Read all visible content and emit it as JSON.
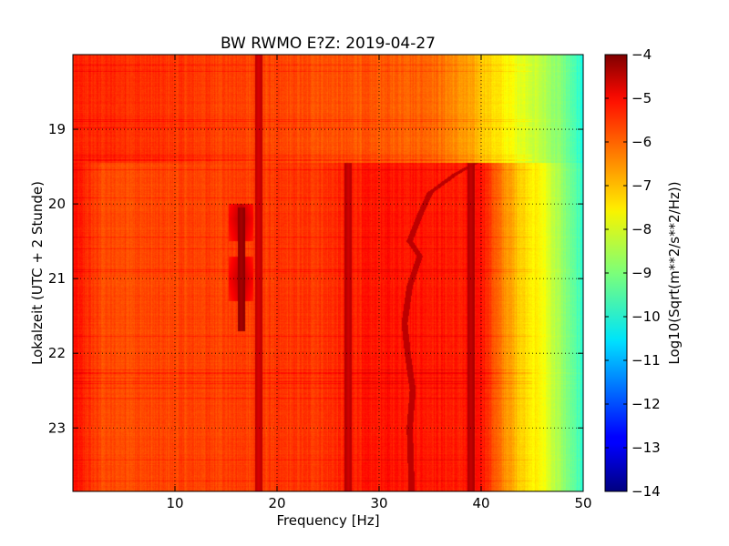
{
  "chart_data": {
    "type": "heatmap",
    "title": "BW RWMO E?Z: 2019-04-27",
    "xlabel": "Frequency [Hz]",
    "ylabel": "Lokalzeit (UTC + 2 Stunde)",
    "xlim": [
      0,
      50
    ],
    "ylim": [
      18,
      23.85
    ],
    "x_ticks": [
      10,
      20,
      30,
      40,
      50
    ],
    "y_ticks": [
      19,
      20,
      21,
      22,
      23
    ],
    "y_inverted": true,
    "grid": true,
    "colorbar": {
      "label": "Log10(Sqrt(m**2/s**2/Hz))",
      "range": [
        -14,
        -4
      ],
      "ticks": [
        -4,
        -5,
        -6,
        -7,
        -8,
        -9,
        -10,
        -11,
        -12,
        -13,
        -14
      ],
      "colormap": "jet"
    },
    "features": {
      "background_level": -6.0,
      "high_freq_rolloff": [
        {
          "freq": 0,
          "value": -5.4
        },
        {
          "freq": 3,
          "value": -6.0
        },
        {
          "freq": 38,
          "value": -5.6
        },
        {
          "freq": 40,
          "value": -5.3
        },
        {
          "freq": 42,
          "value": -6.5
        },
        {
          "freq": 44,
          "value": -7.3
        },
        {
          "freq": 46,
          "value": -7.8
        },
        {
          "freq": 48,
          "value": -8.8
        },
        {
          "freq": 50,
          "value": -9.8
        }
      ],
      "early_segment_end_time": 19.45,
      "early_segment_rolloff": [
        {
          "freq": 0,
          "value": -5.6
        },
        {
          "freq": 35,
          "value": -6.2
        },
        {
          "freq": 39,
          "value": -6.9
        },
        {
          "freq": 42,
          "value": -7.6
        },
        {
          "freq": 45,
          "value": -8.2
        },
        {
          "freq": 48,
          "value": -9.0
        },
        {
          "freq": 50,
          "value": -10.0
        }
      ],
      "lines": [
        {
          "freq": 18.2,
          "t_start": 18.0,
          "t_end": 23.85,
          "value": -4.9
        },
        {
          "freq": 16.5,
          "t_start": 20.05,
          "t_end": 21.7,
          "value": -4.4
        },
        {
          "freq": 27,
          "t_start": 19.45,
          "t_end": 23.85,
          "value": -4.8
        },
        {
          "freq": 39,
          "t_start": 19.45,
          "t_end": 23.85,
          "value": -4.7
        }
      ],
      "drifting_line": [
        {
          "freq": 39.5,
          "time": 19.45
        },
        {
          "freq": 37.5,
          "time": 19.6
        },
        {
          "freq": 35,
          "time": 19.85
        },
        {
          "freq": 34,
          "time": 20.15
        },
        {
          "freq": 33,
          "time": 20.5
        },
        {
          "freq": 34,
          "time": 20.7
        },
        {
          "freq": 33,
          "time": 21.1
        },
        {
          "freq": 32.5,
          "time": 21.6
        },
        {
          "freq": 32.8,
          "time": 22.0
        },
        {
          "freq": 33.3,
          "time": 22.5
        },
        {
          "freq": 33.0,
          "time": 23.0
        },
        {
          "freq": 33.2,
          "time": 23.85
        }
      ]
    }
  }
}
